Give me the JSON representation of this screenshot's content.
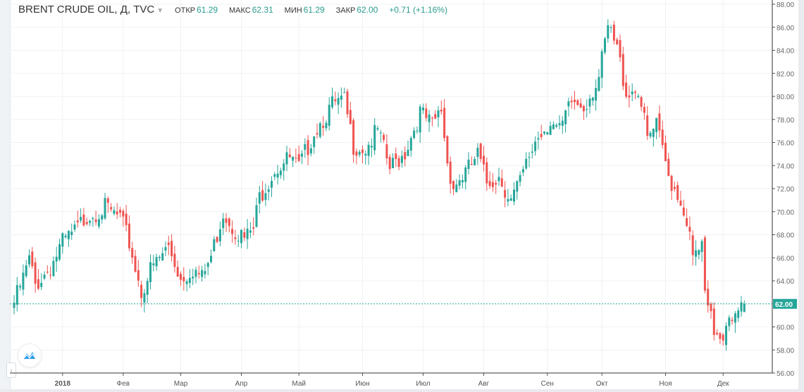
{
  "legend": {
    "symbol": "BRENT CRUDE OIL, Д, TVC",
    "open_label": "ОТКР",
    "open": "61.29",
    "high_label": "МАКС",
    "high": "62.31",
    "low_label": "МИН",
    "low": "61.29",
    "close_label": "ЗАКР",
    "close": "62.00",
    "change": "+0.71 (+1.16%)"
  },
  "colors": {
    "up": "#26a69a",
    "down": "#ef5350",
    "last": "#26a69a"
  },
  "chart_data": {
    "type": "candlestick",
    "title": "BRENT CRUDE OIL, Д, TVC",
    "y_ticks": [
      "88.00",
      "86.00",
      "84.00",
      "82.00",
      "80.00",
      "78.00",
      "76.00",
      "74.00",
      "72.00",
      "70.00",
      "68.00",
      "66.00",
      "64.00",
      "60.00",
      "58.00",
      "56.00"
    ],
    "ylim": [
      56,
      88
    ],
    "x_ticks": [
      "2018",
      "Фев",
      "Мар",
      "Апр",
      "Май",
      "Июн",
      "Июл",
      "Авг",
      "Сен",
      "Окт",
      "Ноя",
      "Дек"
    ],
    "x_tick_day_index": [
      16,
      36,
      55,
      75,
      94,
      115,
      135,
      155,
      176,
      194,
      215,
      234
    ],
    "last_price": "62.00",
    "last_candle": {
      "open": 61.29,
      "high": 62.31,
      "low": 61.29,
      "close": 62.0
    },
    "close_keypoints_by_trading_day": [
      [
        0,
        62.1
      ],
      [
        3,
        64.2
      ],
      [
        5,
        65.8
      ],
      [
        7,
        63.6
      ],
      [
        12,
        65.2
      ],
      [
        16,
        67.3
      ],
      [
        20,
        68.2
      ],
      [
        24,
        69.7
      ],
      [
        30,
        70.3
      ],
      [
        35,
        69.4
      ],
      [
        38,
        67.3
      ],
      [
        42,
        63.0
      ],
      [
        45,
        64.9
      ],
      [
        51,
        67.0
      ],
      [
        55,
        64.2
      ],
      [
        59,
        65.1
      ],
      [
        62,
        64.2
      ],
      [
        65,
        66.1
      ],
      [
        69,
        70.0
      ],
      [
        72,
        68.8
      ],
      [
        76,
        67.6
      ],
      [
        79,
        68.5
      ],
      [
        81,
        71.3
      ],
      [
        86,
        73.7
      ],
      [
        91,
        74.6
      ],
      [
        94,
        73.7
      ],
      [
        99,
        77.0
      ],
      [
        105,
        79.2
      ],
      [
        109,
        79.5
      ],
      [
        112,
        75.8
      ],
      [
        116,
        75.5
      ],
      [
        120,
        77.0
      ],
      [
        124,
        73.7
      ],
      [
        129,
        75.2
      ],
      [
        134,
        78.6
      ],
      [
        138,
        77.4
      ],
      [
        141,
        78.9
      ],
      [
        143,
        74.3
      ],
      [
        145,
        72.2
      ],
      [
        150,
        73.7
      ],
      [
        153,
        74.9
      ],
      [
        156,
        72.5
      ],
      [
        160,
        73.1
      ],
      [
        164,
        71.0
      ],
      [
        167,
        72.5
      ],
      [
        172,
        76.2
      ],
      [
        177,
        78.0
      ],
      [
        180,
        76.8
      ],
      [
        184,
        79.5
      ],
      [
        188,
        79.2
      ],
      [
        193,
        81.6
      ],
      [
        196,
        85.9
      ],
      [
        199,
        84.1
      ],
      [
        202,
        80.4
      ],
      [
        206,
        80.7
      ],
      [
        209,
        76.2
      ],
      [
        212,
        77.4
      ],
      [
        216,
        73.1
      ],
      [
        219,
        71.6
      ],
      [
        222,
        69.4
      ],
      [
        224,
        65.8
      ],
      [
        227,
        67.0
      ],
      [
        228,
        62.4
      ],
      [
        231,
        59.7
      ],
      [
        234,
        59.4
      ],
      [
        236,
        61.5
      ],
      [
        238,
        60.6
      ],
      [
        241,
        62.0
      ]
    ]
  }
}
